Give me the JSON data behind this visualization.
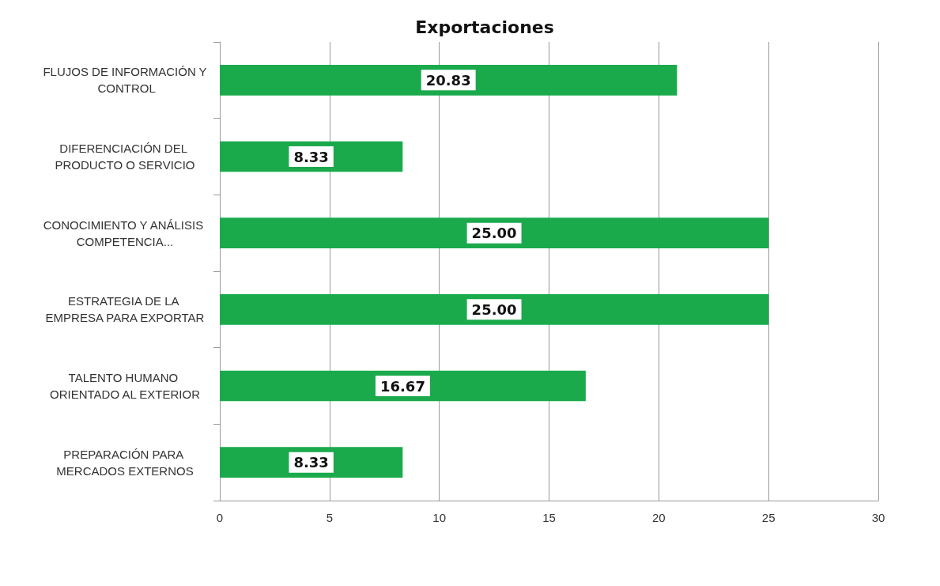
{
  "chart_data": {
    "type": "bar",
    "title": "Exportaciones",
    "orientation": "horizontal",
    "categories": [
      "FLUJOS DE INFORMACIÓN Y CONTROL",
      "DIFERENCIACIÓN DEL PRODUCTO O SERVICIO",
      "CONOCIMIENTO Y ANÁLISIS COMPETENCIA...",
      "ESTRATEGIA DE LA EMPRESA PARA EXPORTAR",
      "TALENTO HUMANO ORIENTADO AL EXTERIOR",
      "PREPARACIÓN PARA MERCADOS EXTERNOS"
    ],
    "values": [
      20.83,
      8.33,
      25,
      25,
      16.67,
      8.33
    ],
    "value_labels": [
      "20.83",
      "8.33",
      "25.00",
      "25.00",
      "16.67",
      "8.33"
    ],
    "color": "#1aaa4c",
    "xlim": [
      0,
      30
    ],
    "xticks": [
      0,
      5,
      10,
      15,
      20,
      25,
      30
    ],
    "grid": "x"
  }
}
